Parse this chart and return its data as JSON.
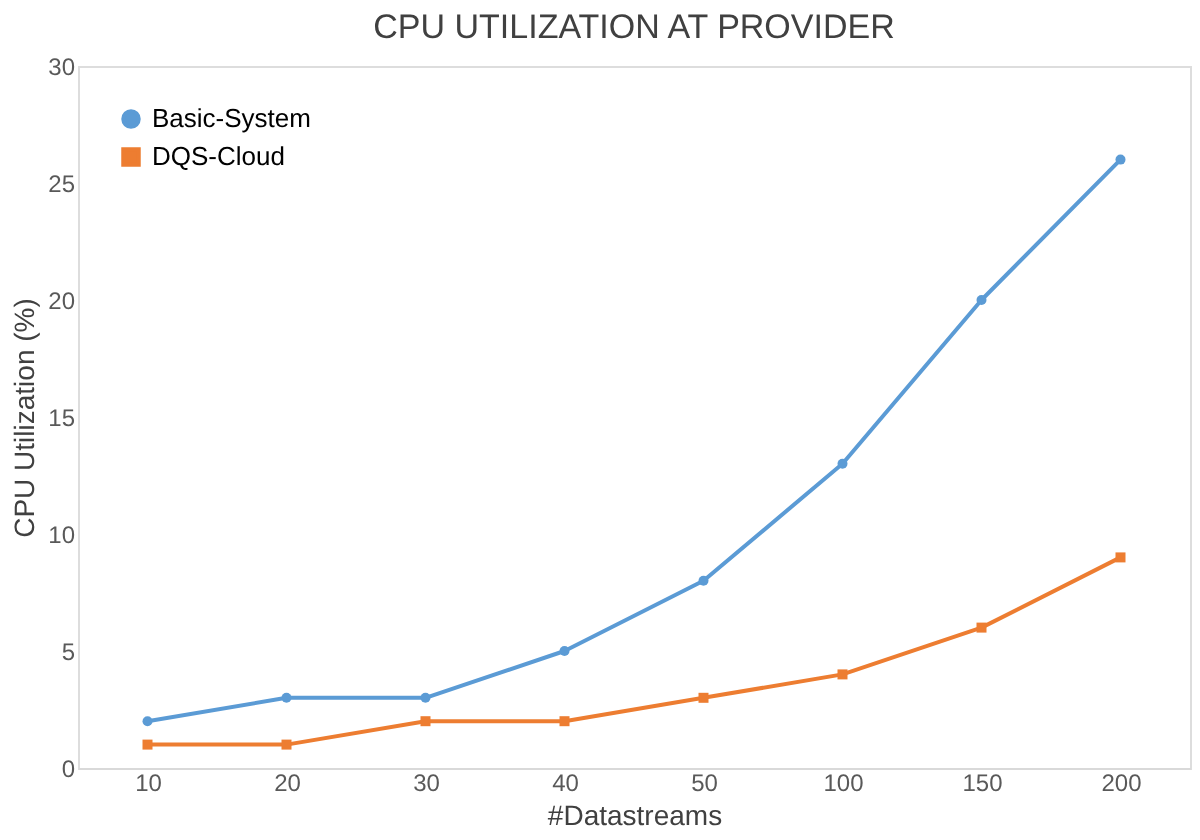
{
  "chart_data": {
    "type": "line",
    "title": "CPU UTILIZATION AT PROVIDER",
    "xlabel": "#Datastreams",
    "ylabel": "CPU Utilization (%)",
    "categories": [
      "10",
      "20",
      "30",
      "40",
      "50",
      "100",
      "150",
      "200"
    ],
    "series": [
      {
        "name": "Basic-System",
        "color": "#5b9bd5",
        "marker": "circle",
        "values": [
          2,
          3,
          3,
          5,
          8,
          13,
          20,
          26
        ]
      },
      {
        "name": "DQS-Cloud",
        "color": "#ed7d31",
        "marker": "square",
        "values": [
          1,
          1,
          2,
          2,
          3,
          4,
          6,
          9
        ]
      }
    ],
    "ylim": [
      0,
      30
    ],
    "yticks": [
      0,
      5,
      10,
      15,
      20,
      25,
      30
    ],
    "grid": false,
    "legend": "top left",
    "line_style": "solid"
  }
}
